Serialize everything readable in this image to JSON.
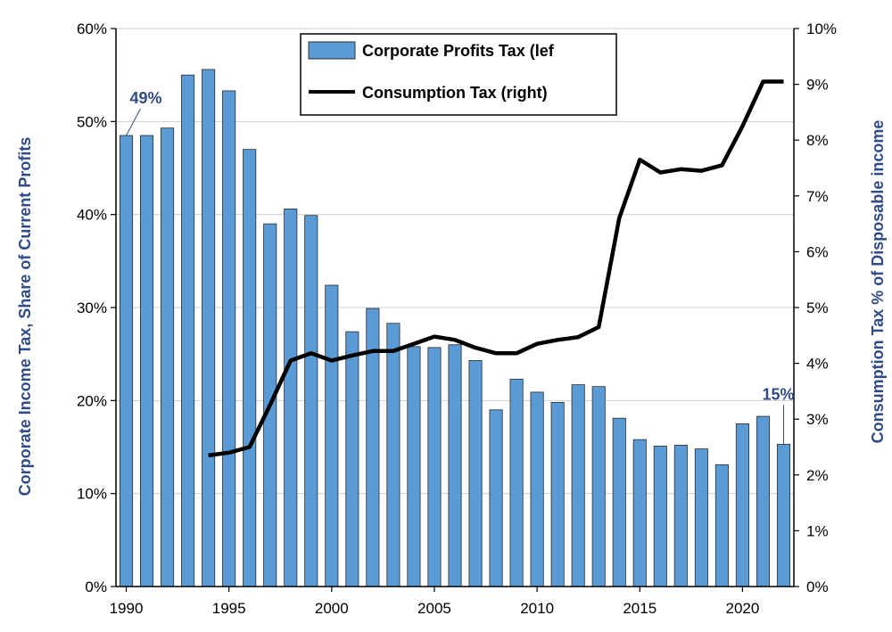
{
  "chart_data": {
    "type": "bar+line",
    "x": [
      1990,
      1991,
      1992,
      1993,
      1994,
      1995,
      1996,
      1997,
      1998,
      1999,
      2000,
      2001,
      2002,
      2003,
      2004,
      2005,
      2006,
      2007,
      2008,
      2009,
      2010,
      2011,
      2012,
      2013,
      2014,
      2015,
      2016,
      2017,
      2018,
      2019,
      2020,
      2021,
      2022
    ],
    "x_tick_labels": [
      "1990",
      "1995",
      "2000",
      "2005",
      "2010",
      "2015",
      "2020"
    ],
    "series": [
      {
        "name": "Corporate Profits Tax (lef",
        "type": "bar",
        "axis": "left",
        "color": "#5b9bd5",
        "values": [
          48.5,
          48.5,
          49.3,
          55,
          55.6,
          53.3,
          47,
          39,
          40.6,
          39.9,
          32.4,
          27.4,
          29.9,
          28.3,
          25.8,
          25.7,
          26,
          24.3,
          19,
          22.3,
          20.9,
          19.8,
          21.7,
          21.5,
          18.1,
          15.8,
          15.1,
          15.2,
          14.8,
          13.1,
          17.5,
          18.3,
          15.3
        ]
      },
      {
        "name": "Consumption Tax (right)",
        "type": "line",
        "axis": "right",
        "color": "#000000",
        "values": [
          null,
          null,
          null,
          null,
          2.35,
          2.4,
          2.5,
          3.25,
          4.05,
          4.18,
          4.05,
          4.14,
          4.22,
          4.22,
          4.35,
          4.48,
          4.42,
          4.28,
          4.18,
          4.18,
          4.35,
          4.42,
          4.47,
          4.65,
          6.6,
          7.65,
          7.42,
          7.48,
          7.45,
          7.55,
          8.25,
          9.05,
          9.05
        ]
      }
    ],
    "y_left": {
      "label": "Corporate Income Tax, Share of Current Profits",
      "ylim": [
        0,
        60
      ],
      "ticks": [
        "0%",
        "10%",
        "20%",
        "30%",
        "40%",
        "50%",
        "60%"
      ]
    },
    "y_right": {
      "label": "Consumption Tax % of Disposable income",
      "ylim": [
        0,
        10
      ],
      "ticks": [
        "0%",
        "1%",
        "2%",
        "3%",
        "4%",
        "5%",
        "6%",
        "7%",
        "8%",
        "9%",
        "10%"
      ]
    },
    "annotations": [
      {
        "text": "49%",
        "year": 1990,
        "value": 48.5
      },
      {
        "text": "15%",
        "year": 2022,
        "value": 15.3
      }
    ],
    "grid": true,
    "legend": "top-center"
  }
}
